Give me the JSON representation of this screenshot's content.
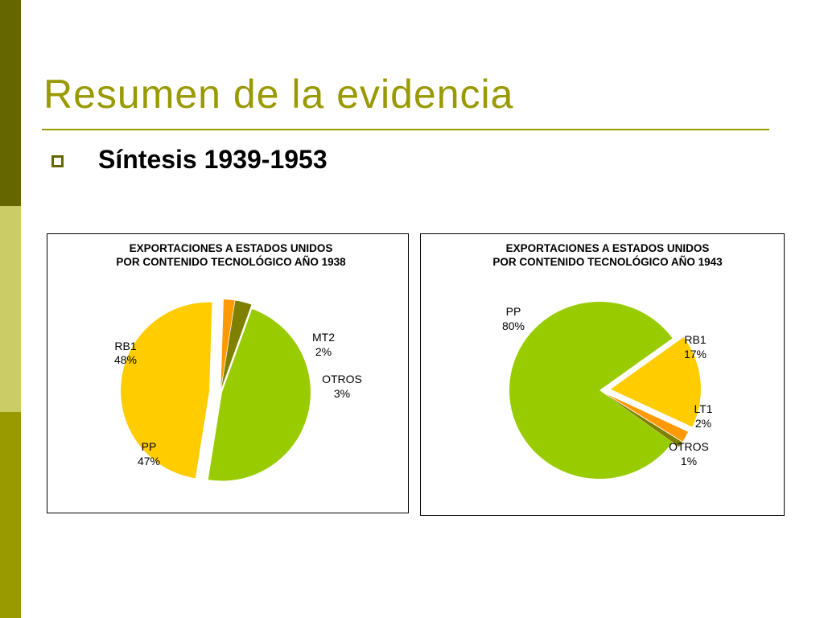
{
  "slide": {
    "title": "Resumen de la evidencia",
    "bullet": "Síntesis 1939-1953"
  },
  "chart_data": [
    {
      "type": "pie",
      "title_line1": "EXPORTACIONES A ESTADOS UNIDOS",
      "title_line2": "POR CONTENIDO TECNOLÓGICO AÑO 1938",
      "slices": [
        {
          "name": "RB1",
          "value": 48,
          "label": "48%",
          "color": "#ffcc00"
        },
        {
          "name": "MT2",
          "value": 2,
          "label": "2%",
          "color": "#ff9900"
        },
        {
          "name": "OTROS",
          "value": 3,
          "label": "3%",
          "color": "#808000"
        },
        {
          "name": "PP",
          "value": 47,
          "label": "47%",
          "color": "#99cc00"
        }
      ]
    },
    {
      "type": "pie",
      "title_line1": "EXPORTACIONES A ESTADOS UNIDOS",
      "title_line2": "POR CONTENIDO TECNOLÓGICO AÑO 1943",
      "slices": [
        {
          "name": "PP",
          "value": 80,
          "label": "80%",
          "color": "#99cc00"
        },
        {
          "name": "RB1",
          "value": 17,
          "label": "17%",
          "color": "#ffcc00"
        },
        {
          "name": "LT1",
          "value": 2,
          "label": "2%",
          "color": "#ff9900"
        },
        {
          "name": "OTROS",
          "value": 1,
          "label": "1%",
          "color": "#808000"
        }
      ]
    }
  ]
}
